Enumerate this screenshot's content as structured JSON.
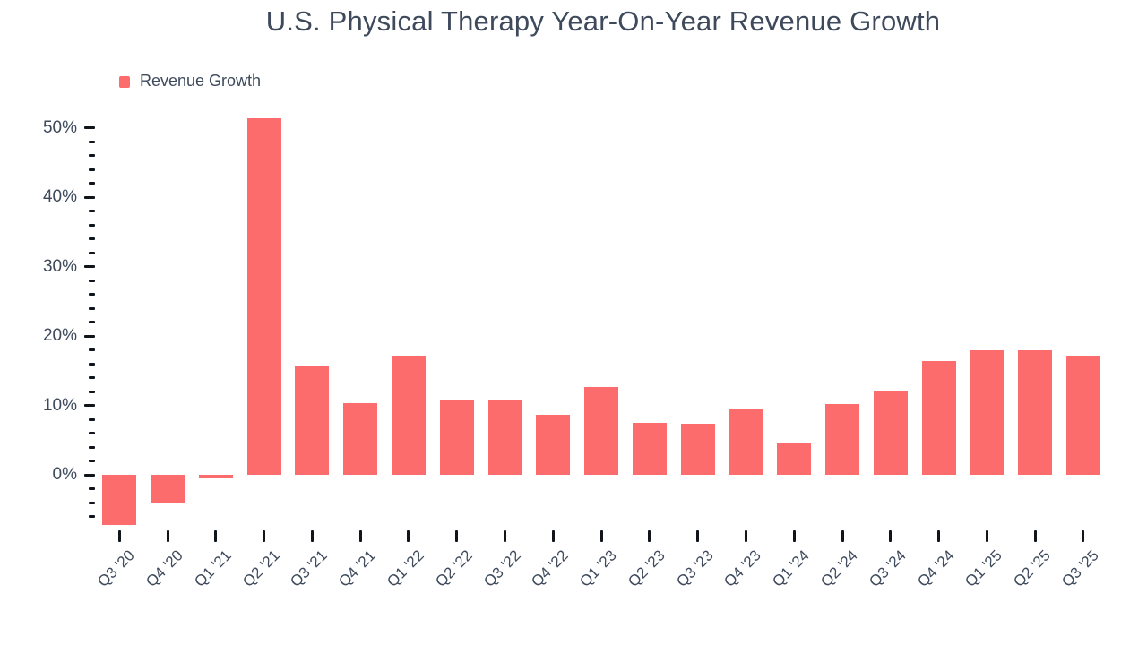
{
  "title": "U.S. Physical Therapy Year-On-Year Revenue Growth",
  "legend": {
    "label": "Revenue Growth",
    "swatch_icon": "legend-swatch-square",
    "swatch_color": "#FC6C6C"
  },
  "colors": {
    "bar": "#FC6C6C",
    "text": "#3E4A5C",
    "tick": "#10151B",
    "background": "#FFFFFF"
  },
  "chart_data": {
    "type": "bar",
    "title": "U.S. Physical Therapy Year-On-Year Revenue Growth",
    "series_name": "Revenue Growth",
    "categories": [
      "Q3 '20",
      "Q4 '20",
      "Q1 '21",
      "Q2 '21",
      "Q3 '21",
      "Q4 '21",
      "Q1 '22",
      "Q2 '22",
      "Q3 '22",
      "Q4 '22",
      "Q1 '23",
      "Q2 '23",
      "Q3 '23",
      "Q4 '23",
      "Q1 '24",
      "Q2 '24",
      "Q3 '24",
      "Q4 '24",
      "Q1 '25",
      "Q2 '25",
      "Q3 '25"
    ],
    "values": [
      -7.2,
      -4.0,
      -0.5,
      51.3,
      15.6,
      10.3,
      17.1,
      10.8,
      10.8,
      8.6,
      12.7,
      7.5,
      7.4,
      9.6,
      4.7,
      10.2,
      12.0,
      16.4,
      18.0,
      18.0,
      17.2
    ],
    "value_unit": "%",
    "xlabel": "",
    "ylabel": "",
    "ylim": [
      -8,
      52
    ],
    "y_major_tick_step": 10,
    "y_minor_tick_step": 2,
    "y_minor_tick_min": -6,
    "y_tick_labels": [
      "0%",
      "10%",
      "20%",
      "30%",
      "40%",
      "50%"
    ],
    "grid": false,
    "legend_position": "top-left",
    "x_tick_label_rotation_deg": -45
  }
}
